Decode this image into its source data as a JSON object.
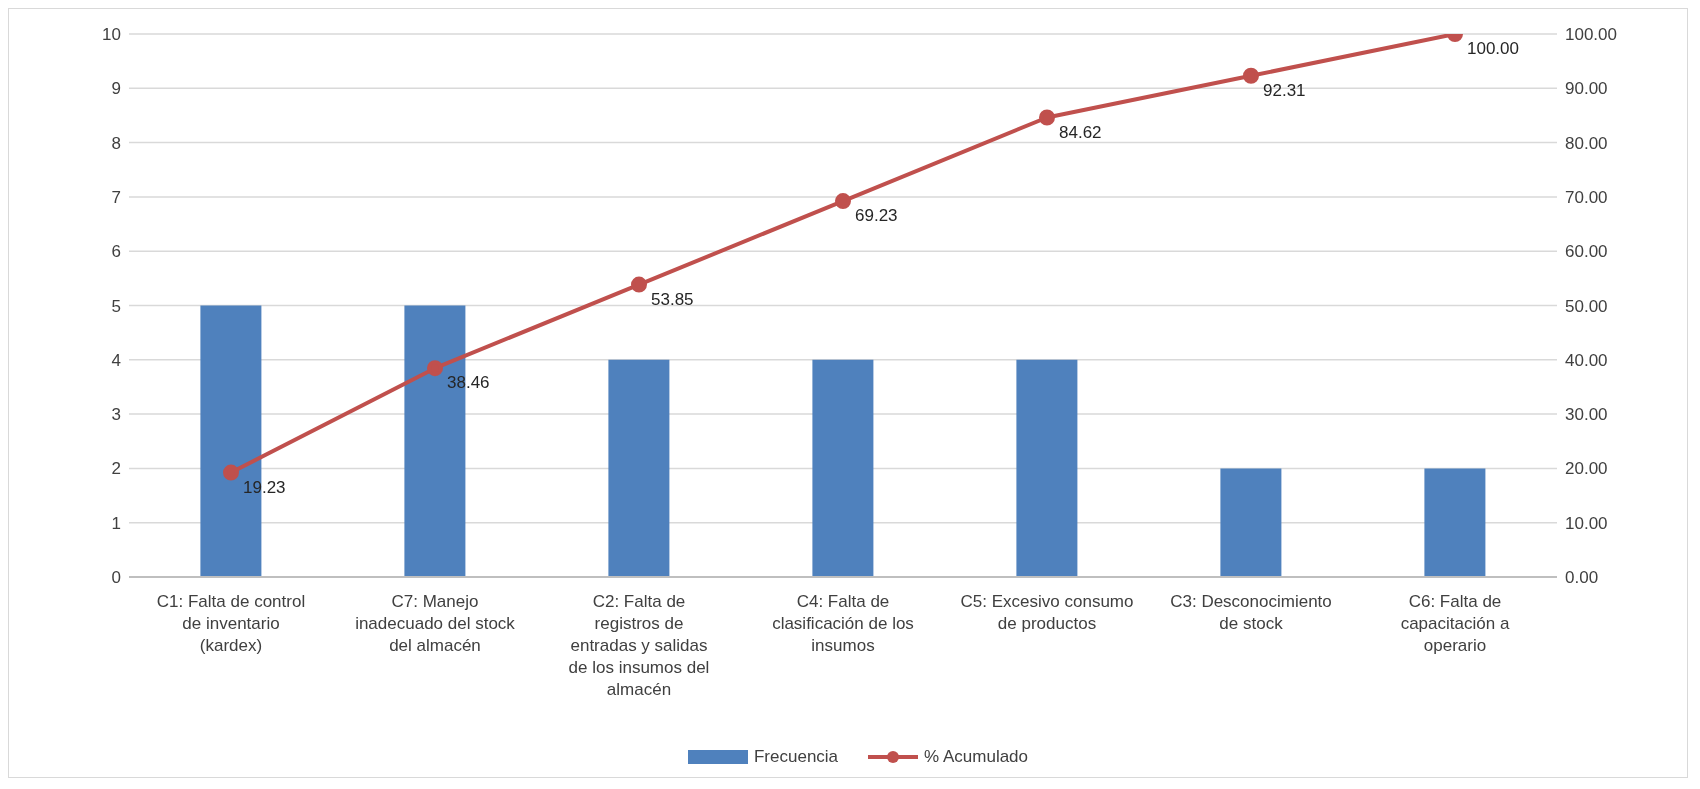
{
  "chart_data": {
    "type": "bar",
    "categories": [
      "C1: Falta de control de inventario (kardex)",
      "C7: Manejo inadecuado del stock del almacén",
      "C2: Falta de registros de entradas y salidas de los insumos del almacén",
      "C4: Falta de clasificación de los insumos",
      "C5: Excesivo consumo de productos",
      "C3: Desconocimiento de stock",
      "C6: Falta de capacitación a operario"
    ],
    "series": [
      {
        "name": "Frecuencia",
        "color": "#4f81bd",
        "values": [
          5,
          5,
          4,
          4,
          4,
          2,
          2
        ]
      },
      {
        "name": "% Acumulado",
        "type": "line",
        "axis": "y2",
        "color": "#c0504d",
        "marker": "circle",
        "values": [
          19.23,
          38.46,
          53.85,
          69.23,
          84.62,
          92.31,
          100.0
        ],
        "value_labels": [
          "19.23",
          "38.46",
          "53.85",
          "69.23",
          "84.62",
          "92.31",
          "100.00"
        ]
      }
    ],
    "ylim": [
      0,
      10
    ],
    "yticks": [
      0,
      1,
      2,
      3,
      4,
      5,
      6,
      7,
      8,
      9,
      10
    ],
    "y2lim": [
      0,
      100
    ],
    "y2ticks": [
      {
        "value": 0,
        "label": "0.00"
      },
      {
        "value": 10,
        "label": "10.00"
      },
      {
        "value": 20,
        "label": "20.00"
      },
      {
        "value": 30,
        "label": "30.00"
      },
      {
        "value": 40,
        "label": "40.00"
      },
      {
        "value": 50,
        "label": "50.00"
      },
      {
        "value": 60,
        "label": "60.00"
      },
      {
        "value": 70,
        "label": "70.00"
      },
      {
        "value": 80,
        "label": "80.00"
      },
      {
        "value": 90,
        "label": "90.00"
      },
      {
        "value": 100,
        "label": "100.00"
      }
    ],
    "grid": "y",
    "legend": "bottom"
  }
}
